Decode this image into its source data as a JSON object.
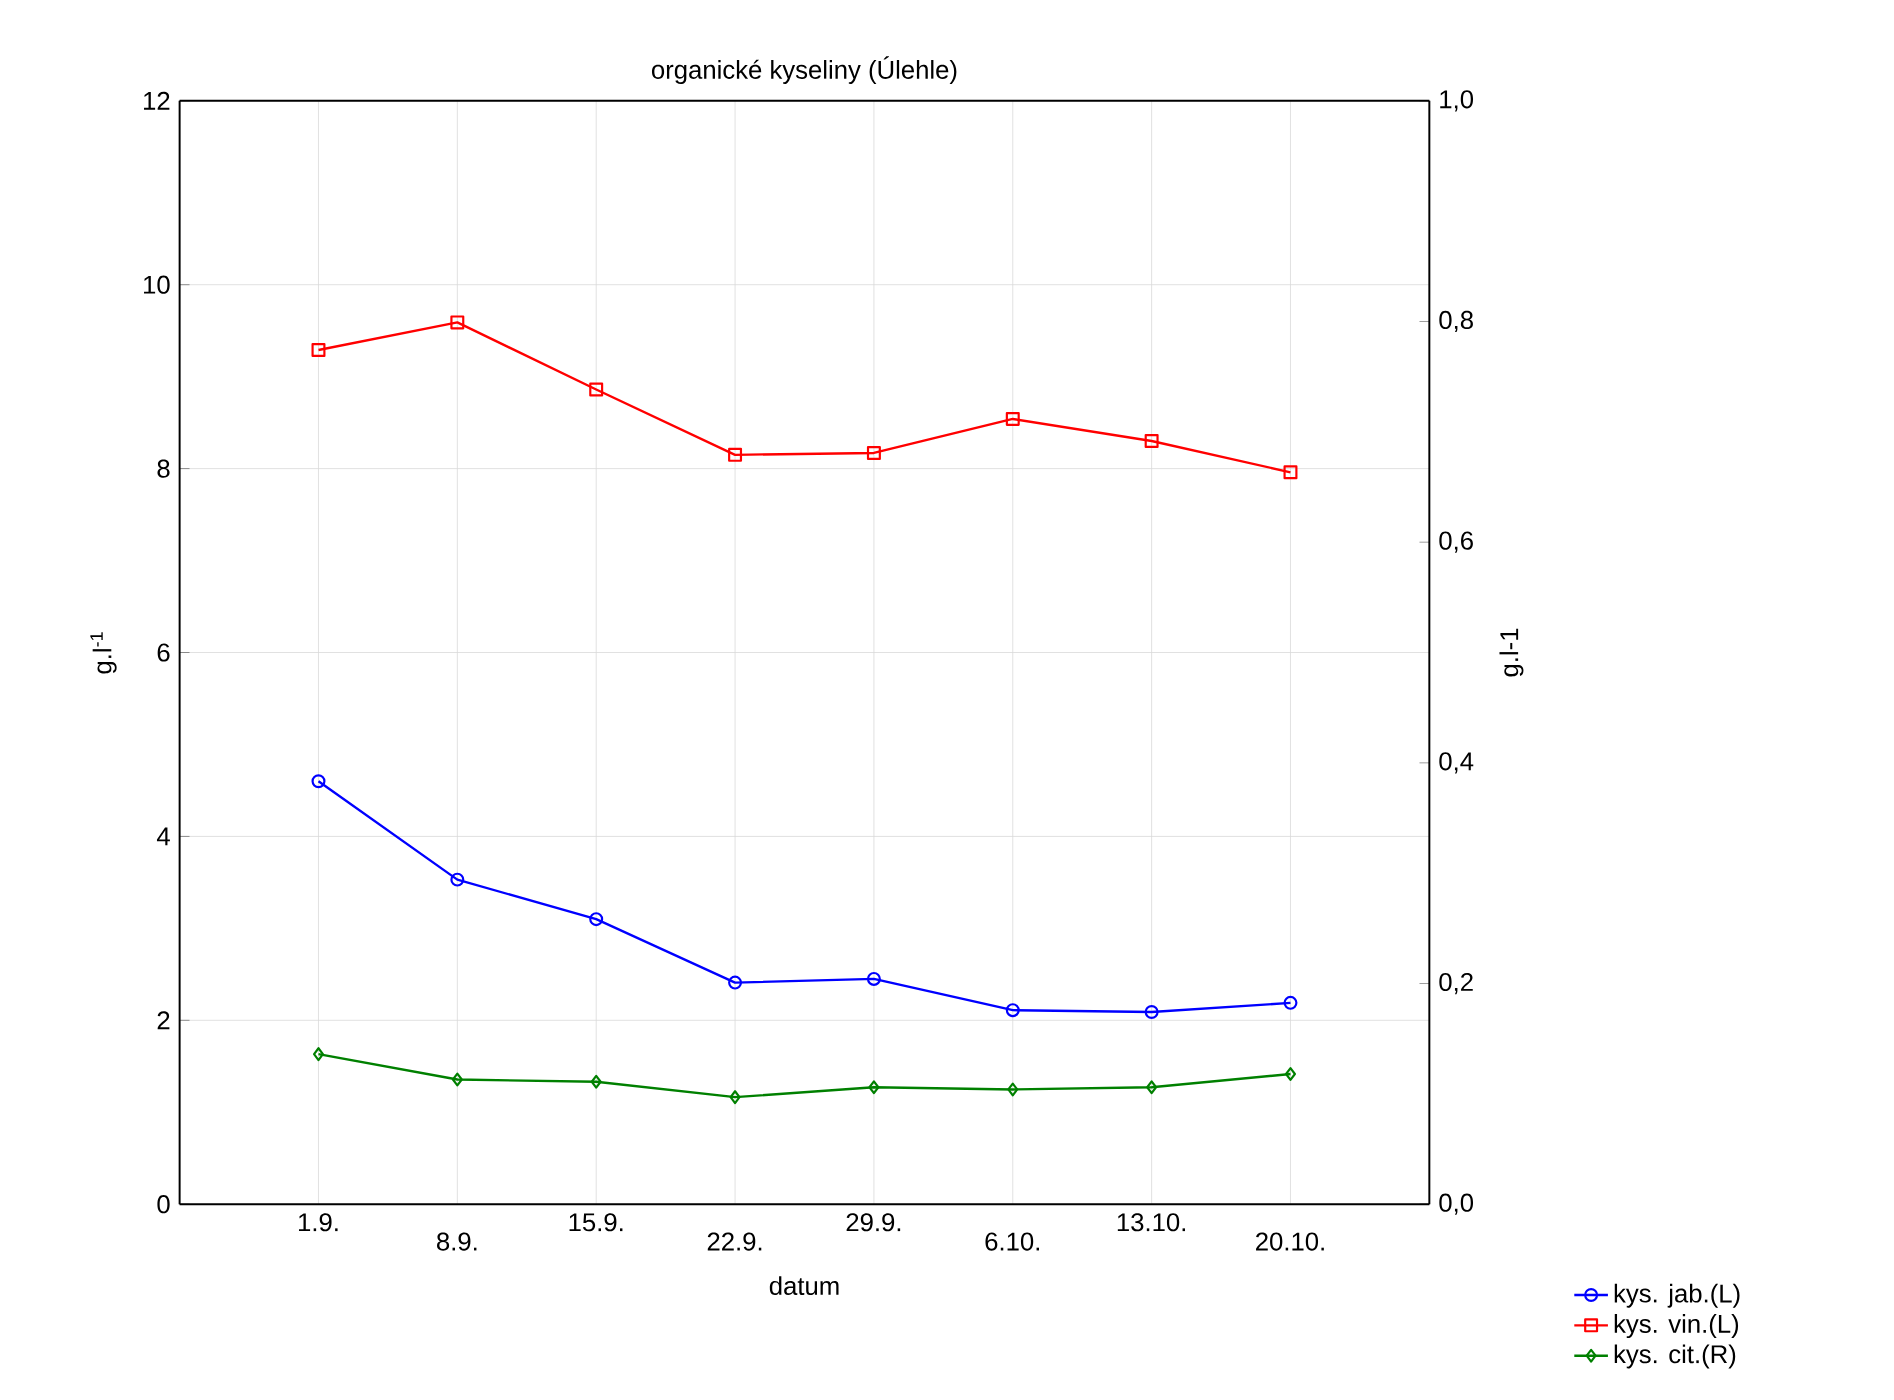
{
  "chart_data": {
    "type": "line",
    "title": "organické kyseliny (Úlehle)",
    "xlabel": "datum",
    "ylabel": "g.l$^{-1}$",
    "y2label": "g.l-1",
    "categories": [
      "1.9.",
      "8.9.",
      "15.9.",
      "22.9.",
      "29.9.",
      "6.10.",
      "13.10.",
      "20.10."
    ],
    "series": [
      {
        "name": "kys. jab.(L)",
        "color": "#0000ff",
        "marker": "circle",
        "values": [
          4.6,
          3.53,
          3.1,
          2.41,
          2.45,
          2.11,
          2.09,
          2.19
        ]
      },
      {
        "name": "kys. vin.(L)",
        "color": "#ff0000",
        "marker": "square",
        "values": [
          9.29,
          9.59,
          8.86,
          8.15,
          8.17,
          8.54,
          8.3,
          7.96
        ]
      },
      {
        "name": "kys. cit.(R)",
        "color": "#008000",
        "marker": "diamond",
        "axis": "y2",
        "values": [
          0.136,
          0.113,
          0.111,
          0.097,
          0.106,
          0.104,
          0.106,
          0.118
        ]
      }
    ],
    "ylim": [
      0,
      12
    ],
    "yticks": [
      0,
      2,
      4,
      6,
      8,
      10,
      12
    ],
    "y2lim": [
      0,
      1
    ],
    "y2ticks": [
      {
        "value": 0,
        "label": "0,0"
      },
      {
        "value": 0.2,
        "label": "0,2"
      },
      {
        "value": 0.4,
        "label": "0,4"
      },
      {
        "value": 0.6,
        "label": "0,6"
      },
      {
        "value": 0.8,
        "label": "0,8"
      },
      {
        "value": 1,
        "label": "1,0"
      }
    ],
    "grid": true,
    "legend": "bottom right",
    "line_style": "solid"
  }
}
